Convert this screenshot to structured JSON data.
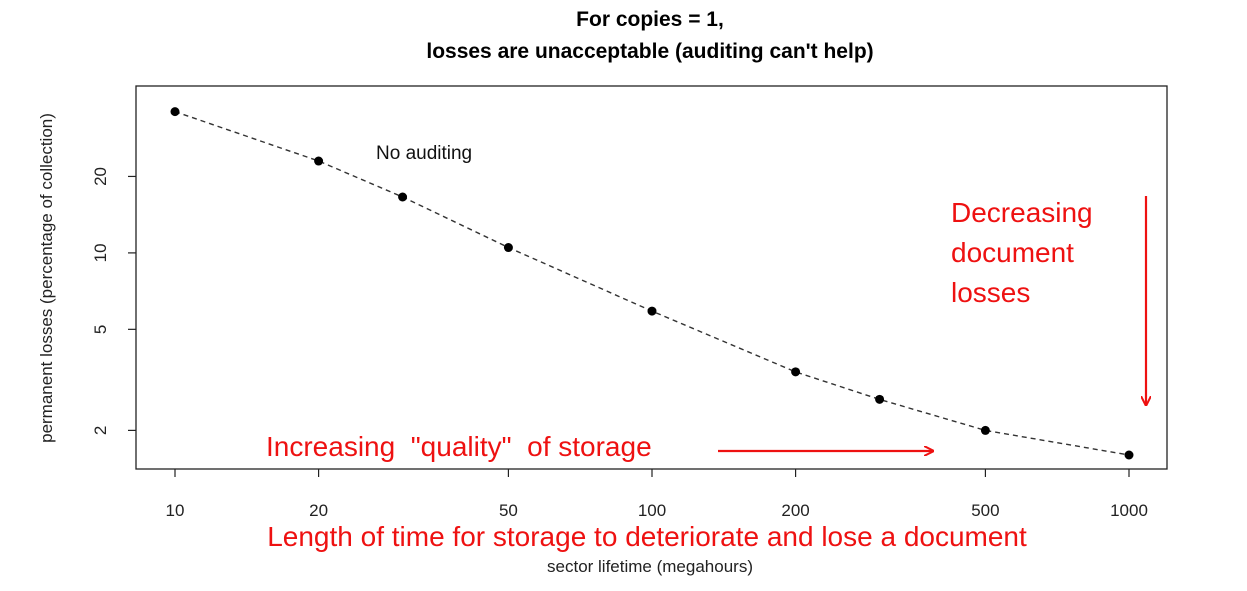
{
  "chart_data": {
    "type": "line",
    "title_line1": "For copies = 1,",
    "title_line2": "losses are unacceptable (auditing can't help)",
    "xlabel": "sector lifetime (megahours)",
    "ylabel": "permanent losses (percentage of collection)",
    "x_scale": "log",
    "y_scale": "log",
    "xlim": [
      10,
      1000
    ],
    "ylim": [
      1.6,
      40
    ],
    "x_ticks": [
      {
        "value": 10,
        "label": "10"
      },
      {
        "value": 20,
        "label": "20"
      },
      {
        "value": 50,
        "label": "50"
      },
      {
        "value": 100,
        "label": "100"
      },
      {
        "value": 200,
        "label": "200"
      },
      {
        "value": 500,
        "label": "500"
      },
      {
        "value": 1000,
        "label": "1000"
      }
    ],
    "y_ticks": [
      {
        "value": 2,
        "label": "2"
      },
      {
        "value": 5,
        "label": "5"
      },
      {
        "value": 10,
        "label": "10"
      },
      {
        "value": 20,
        "label": "20"
      }
    ],
    "grid": false,
    "line_style": "dashed",
    "series": [
      {
        "name": "No auditing",
        "x": [
          10,
          20,
          30,
          50,
          100,
          200,
          300,
          500,
          1000
        ],
        "y": [
          36,
          23,
          16.6,
          10.5,
          5.9,
          3.4,
          2.65,
          2.0,
          1.6
        ]
      }
    ],
    "annotations": {
      "series_label": "No auditing",
      "decreasing_line1": "Decreasing",
      "decreasing_line2": "document",
      "decreasing_line3": "losses",
      "increasing": "Increasing  \"quality\"  of storage",
      "length": "Length of time for storage to deteriorate and lose a document"
    },
    "colors": {
      "points": "#000000",
      "line": "#333333",
      "annotation": "#ee1111"
    }
  }
}
